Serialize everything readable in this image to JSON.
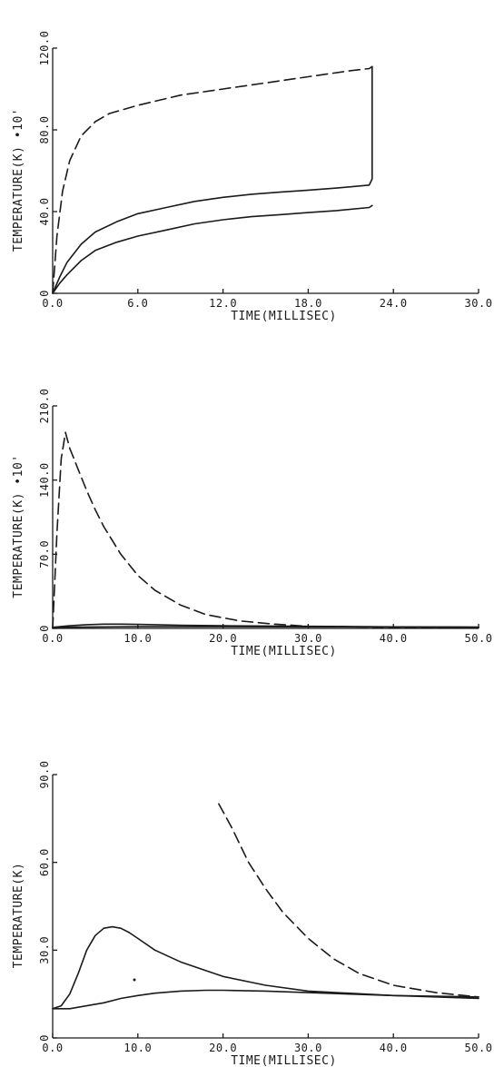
{
  "chart_data": [
    {
      "type": "line",
      "xlabel": "TIME(MILLISEC)",
      "ylabel": "TEMPERATURE(K) •10'",
      "xlim": [
        0,
        30
      ],
      "ylim": [
        0,
        120
      ],
      "x_ticks": [
        "0.0",
        "6.0",
        "12.0",
        "18.0",
        "24.0",
        "30.0"
      ],
      "y_ticks": [
        "0",
        "40.0",
        "80.0",
        "120.0"
      ],
      "grid": false,
      "series": [
        {
          "style": "dashed",
          "x": [
            0,
            0.3,
            0.7,
            1.2,
            2,
            3,
            4,
            6,
            9,
            12,
            15,
            18,
            21,
            22.3,
            22.5
          ],
          "y": [
            0,
            28,
            50,
            65,
            77,
            84,
            88,
            92,
            97,
            100,
            103,
            106,
            109,
            110,
            111
          ]
        },
        {
          "style": "solid",
          "x": [
            0,
            0.5,
            1,
            2,
            3,
            4.5,
            6,
            8,
            10,
            12,
            14,
            16,
            18,
            20,
            22.3,
            22.5,
            22.5
          ],
          "y": [
            0,
            8,
            15,
            24,
            30,
            35,
            39,
            42,
            45,
            47,
            48.5,
            49.5,
            50.5,
            51.5,
            53,
            56,
            111
          ]
        },
        {
          "style": "solid",
          "x": [
            0,
            0.5,
            1,
            2,
            3,
            4.5,
            6,
            8,
            10,
            12,
            14,
            16,
            18,
            20,
            22.3,
            22.5
          ],
          "y": [
            0,
            5,
            9,
            16,
            21,
            25,
            28,
            31,
            34,
            36,
            37.5,
            38.5,
            39.5,
            40.5,
            42,
            43
          ]
        }
      ]
    },
    {
      "type": "line",
      "xlabel": "TIME(MILLISEC)",
      "ylabel": "TEMPERATURE(K) •10'",
      "xlim": [
        0,
        50
      ],
      "ylim": [
        0,
        210
      ],
      "x_ticks": [
        "0.0",
        "10.0",
        "20.0",
        "30.0",
        "40.0",
        "50.0"
      ],
      "y_ticks": [
        "0",
        "70.0",
        "140.0",
        "210.0"
      ],
      "grid": false,
      "series": [
        {
          "style": "dashed",
          "x": [
            0,
            0.5,
            1,
            1.5,
            2,
            2.5,
            3,
            4,
            5,
            6,
            8,
            10,
            12,
            15,
            18,
            22,
            26,
            30,
            40,
            50
          ],
          "y": [
            0,
            90,
            160,
            185,
            170,
            160,
            150,
            130,
            112,
            96,
            70,
            50,
            36,
            22,
            13,
            7,
            4,
            2,
            1,
            0.5
          ]
        },
        {
          "style": "solid",
          "x": [
            0,
            2,
            4,
            6,
            8,
            10,
            12,
            15,
            20,
            30,
            40,
            50
          ],
          "y": [
            1,
            2.5,
            3.5,
            4,
            4,
            3.8,
            3.5,
            3,
            2.5,
            2,
            1.5,
            1
          ]
        },
        {
          "style": "solid",
          "x": [
            0,
            5,
            10,
            20,
            30,
            40,
            50
          ],
          "y": [
            1,
            1.4,
            1.6,
            1.6,
            1.5,
            1.4,
            1.3
          ]
        }
      ]
    },
    {
      "type": "line",
      "xlabel": "TIME(MILLISEC)",
      "ylabel": "TEMPERATURE(K)",
      "xlim": [
        0,
        50
      ],
      "ylim": [
        0,
        90
      ],
      "x_ticks": [
        "0.0",
        "10.0",
        "20.0",
        "30.0",
        "40.0",
        "50.0"
      ],
      "y_ticks": [
        "0",
        "30.0",
        "60.0",
        "90.0"
      ],
      "grid": false,
      "series": [
        {
          "style": "dashed",
          "x": [
            19.5,
            21,
            23,
            25,
            27,
            30,
            33,
            36,
            40,
            45,
            50
          ],
          "y": [
            80,
            72,
            60,
            51,
            43,
            34,
            27,
            22,
            18,
            15.5,
            14
          ]
        },
        {
          "style": "solid",
          "x": [
            0,
            1,
            2,
            3,
            4,
            5,
            6,
            7,
            8,
            9,
            10,
            12,
            15,
            18,
            20,
            25,
            30,
            40,
            50
          ],
          "y": [
            10,
            11,
            15,
            22,
            30,
            35,
            37.5,
            38,
            37.5,
            36,
            34,
            30,
            26,
            23,
            21,
            18,
            16,
            14.5,
            13.5
          ]
        },
        {
          "style": "solid",
          "x": [
            0,
            2,
            4,
            6,
            8,
            10,
            12,
            15,
            18,
            20,
            25,
            30,
            40,
            50
          ],
          "y": [
            10,
            10,
            11,
            12,
            13.5,
            14.5,
            15.3,
            16,
            16.3,
            16.3,
            16,
            15.5,
            14.5,
            14
          ]
        }
      ]
    }
  ]
}
